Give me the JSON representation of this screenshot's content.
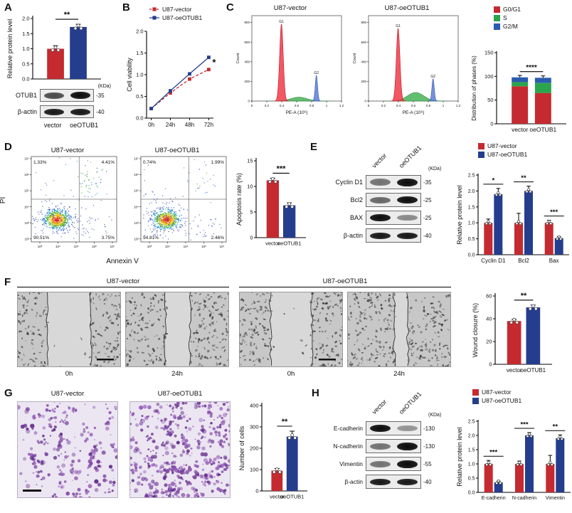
{
  "colors": {
    "red": "#c42a30",
    "blue": "#253d8d",
    "green": "#2aa54c",
    "gblue": "#2a5cae"
  },
  "panels": {
    "A": {
      "label": "A",
      "chart": {
        "type": "bar",
        "ylabel": "Relative protein level",
        "ylim": [
          0,
          2.0
        ],
        "yticks": [
          "0.0",
          "0.5",
          "1.0",
          "1.5",
          "2.0"
        ],
        "categories": [
          "vector",
          "oeOTUB1"
        ],
        "values": [
          1.0,
          1.72
        ],
        "errors": [
          0.1,
          0.09
        ],
        "colors": [
          "red",
          "blue"
        ],
        "sig": "**"
      },
      "blot": {
        "kda": "(KDa)",
        "lane_labels": [
          "vector",
          "oeOTUB1"
        ],
        "rows": [
          {
            "name": "OTUB1",
            "kda": "-35",
            "lanes": [
              0.72,
              1
            ]
          },
          {
            "name": "β-actin",
            "kda": "-40",
            "lanes": [
              0.95,
              0.95
            ]
          }
        ]
      }
    },
    "B": {
      "label": "B",
      "chart": {
        "type": "line",
        "ylabel": "Cell viability",
        "ylim": [
          0,
          2.0
        ],
        "yticks": [
          "0.0",
          "0.5",
          "1.0",
          "1.5",
          "2.0"
        ],
        "x_labels": [
          "0h",
          "24h",
          "48h",
          "72h"
        ],
        "series": [
          {
            "name": "U87-vector",
            "color": "red",
            "dashed": true,
            "values": [
              0.22,
              0.58,
              0.9,
              1.12
            ]
          },
          {
            "name": "U87-oeOTUB1",
            "color": "blue",
            "dashed": false,
            "values": [
              0.22,
              0.63,
              1.02,
              1.4
            ]
          }
        ],
        "sig": "*"
      }
    },
    "C": {
      "label": "C",
      "hist": [
        {
          "type": "flowhist",
          "title": "U87-vector",
          "ylabel": "Count",
          "xlabel": "PE-A (10⁶)",
          "yticks": [
            "0",
            "200",
            "400",
            "600",
            "800"
          ],
          "xticks": [
            "0",
            "0.2",
            "0.4",
            "0.6",
            "0.8",
            "1",
            "1.2"
          ],
          "peaks": {
            "g1_label": "G1",
            "g2_label": "G2",
            "g1_x": 0.33,
            "g1_h": 0.9,
            "g2_x": 0.72,
            "g2_h": 0.3,
            "s_h": 0.045
          }
        },
        {
          "type": "flowhist",
          "title": "U87-oeOTUB1",
          "ylabel": "Count",
          "xlabel": "PE-A (10⁶)",
          "yticks": [
            "0",
            "200",
            "400",
            "600",
            "800"
          ],
          "xticks": [
            "0",
            "0.2",
            "0.4",
            "0.6",
            "0.8",
            "1",
            "1.2"
          ],
          "peaks": {
            "g1_label": "G1",
            "g2_label": "G2",
            "g1_x": 0.33,
            "g1_h": 0.85,
            "g2_x": 0.72,
            "g2_h": 0.26,
            "s_h": 0.1
          }
        }
      ],
      "stack": {
        "type": "stacked",
        "ylabel": "Distribution of phases (%)",
        "ylim": [
          0,
          150
        ],
        "yticks": [
          "0",
          "50",
          "100",
          "150"
        ],
        "categories": [
          "vector",
          "oeOTUB1"
        ],
        "series": [
          {
            "name": "G0/G1",
            "color": "red",
            "values": [
              79,
              65
            ]
          },
          {
            "name": "S",
            "color": "green",
            "values": [
              9,
              21
            ]
          },
          {
            "name": "G2/M",
            "color": "gblue",
            "values": [
              10,
              11
            ]
          }
        ],
        "sig": "****"
      }
    },
    "D": {
      "label": "D",
      "y_axis_label": "PI",
      "x_axis_label": "Annexin V",
      "flow": [
        {
          "type": "flowscatter",
          "title": "U87-vector",
          "yticks": [
            "10⁷",
            "10⁶",
            "10⁵",
            "10⁴",
            "10³",
            "10²"
          ],
          "xticks": [
            "10³",
            "10⁴",
            "10⁵",
            "10⁶",
            "10⁷"
          ],
          "ur_n": 45,
          "quads": {
            "ul": "1.33%",
            "ur": "4.41%",
            "ll": "90.51%",
            "lr": "3.75%"
          }
        },
        {
          "type": "flowscatter",
          "title": "U87-oeOTUB1",
          "yticks": [
            "10⁷",
            "10⁶",
            "10⁵",
            "10⁴",
            "10³",
            "10²"
          ],
          "xticks": [
            "10³",
            "10⁴",
            "10⁵",
            "10⁶",
            "10⁷"
          ],
          "ur_n": 16,
          "quads": {
            "ul": "0.74%",
            "ur": "1.99%",
            "ll": "94.81%",
            "lr": "2.46%"
          }
        }
      ],
      "chart": {
        "type": "bar",
        "ylabel": "Apoptosis rate (%)",
        "ylim": [
          0,
          15
        ],
        "yticks": [
          "0",
          "5",
          "10",
          "15"
        ],
        "categories": [
          "vector",
          "oeOTUB1"
        ],
        "values": [
          11.2,
          6.3
        ],
        "errors": [
          0.4,
          0.5
        ],
        "colors": [
          "red",
          "blue"
        ],
        "sig": "***"
      }
    },
    "E": {
      "label": "E",
      "blot": {
        "kda": "(KDa)",
        "lane_labels": [
          "vector",
          "oeOTUB1"
        ],
        "rows": [
          {
            "name": "Cyclin D1",
            "kda": "-35",
            "lanes": [
              0.55,
              1
            ]
          },
          {
            "name": "Bcl2",
            "kda": "-25",
            "lanes": [
              0.6,
              1
            ]
          },
          {
            "name": "BAX",
            "kda": "-25",
            "lanes": [
              1,
              0.45
            ]
          },
          {
            "name": "β-actin",
            "kda": "-40",
            "lanes": [
              0.95,
              0.95
            ]
          }
        ]
      },
      "chart": {
        "type": "grouped",
        "ylabel": "Relative protein level",
        "ylim": [
          0,
          2.5
        ],
        "yticks": [
          "0.0",
          "0.5",
          "1.0",
          "1.5",
          "2.0",
          "2.5"
        ],
        "categories": [
          "Cyclin D1",
          "Bcl2",
          "Bax"
        ],
        "series": [
          {
            "name": "U87-vector",
            "color": "red",
            "values": [
              1.0,
              1.0,
              1.0
            ],
            "errors": [
              0.12,
              0.3,
              0.08
            ]
          },
          {
            "name": "U87-oeOTUB1",
            "color": "blue",
            "values": [
              1.9,
              2.0,
              0.52
            ],
            "errors": [
              0.18,
              0.15,
              0.05
            ]
          }
        ],
        "sigs": [
          "*",
          "**",
          "***"
        ]
      }
    },
    "F": {
      "label": "F",
      "groups": [
        {
          "title": "U87-vector",
          "times": [
            "0h",
            "24h"
          ]
        },
        {
          "title": "U87-oeOTUB1",
          "times": [
            "0h",
            "24h"
          ]
        }
      ],
      "images": [
        {
          "type": "wound",
          "gap": 0.42,
          "scalebar": true
        },
        {
          "type": "wound",
          "gap": 0.24,
          "scalebar": false
        },
        {
          "type": "wound",
          "gap": 0.4,
          "scalebar": true
        },
        {
          "type": "wound",
          "gap": 0.13,
          "scalebar": false
        }
      ],
      "chart": {
        "type": "bar",
        "ylabel": "Wound closure (%)",
        "ylim": [
          0,
          60
        ],
        "yticks": [
          "0",
          "20",
          "40",
          "60"
        ],
        "categories": [
          "vector",
          "oeOTUB1"
        ],
        "values": [
          38,
          50
        ],
        "errors": [
          1.5,
          2
        ],
        "colors": [
          "red",
          "blue"
        ],
        "sig": "**"
      }
    },
    "G": {
      "label": "G",
      "titles": [
        "U87-vector",
        "U87-oeOTUB1"
      ],
      "images": [
        {
          "type": "transwell",
          "density": 160,
          "scalebar": true
        },
        {
          "type": "transwell",
          "density": 310,
          "scalebar": false
        }
      ],
      "chart": {
        "type": "bar",
        "ylabel": "Number of cells",
        "ylim": [
          0,
          400
        ],
        "yticks": [
          "0",
          "100",
          "200",
          "300",
          "400"
        ],
        "categories": [
          "vector",
          "oeOTUB1"
        ],
        "values": [
          95,
          255
        ],
        "errors": [
          10,
          25
        ],
        "colors": [
          "red",
          "blue"
        ],
        "sig": "**"
      }
    },
    "H": {
      "label": "H",
      "blot": {
        "kda": "(KDa)",
        "lane_labels": [
          "vector",
          "oeOTUB1"
        ],
        "rows": [
          {
            "name": "E-cadherin",
            "kda": "-130",
            "lanes": [
              1,
              0.4
            ]
          },
          {
            "name": "N-cadherin",
            "kda": "-130",
            "lanes": [
              0.55,
              1
            ]
          },
          {
            "name": "Vimentin",
            "kda": "-55",
            "lanes": [
              0.55,
              1
            ]
          },
          {
            "name": "β-actin",
            "kda": "-40",
            "lanes": [
              0.95,
              0.95
            ]
          }
        ]
      },
      "chart": {
        "type": "grouped",
        "ylabel": "Relative protein level",
        "ylim": [
          0,
          2.5
        ],
        "yticks": [
          "0.0",
          "0.5",
          "1.0",
          "1.5",
          "2.0",
          "2.5"
        ],
        "categories": [
          "E-cadherin",
          "N-cadherin",
          "Vimentin"
        ],
        "series": [
          {
            "name": "U87-vector",
            "color": "red",
            "values": [
              1.0,
              1.0,
              1.0
            ],
            "errors": [
              0.12,
              0.1,
              0.3
            ]
          },
          {
            "name": "U87-oeOTUB1",
            "color": "blue",
            "values": [
              0.35,
              2.0,
              1.9
            ],
            "errors": [
              0.05,
              0.1,
              0.12
            ]
          }
        ],
        "sigs": [
          "***",
          "***",
          "**"
        ]
      }
    }
  }
}
